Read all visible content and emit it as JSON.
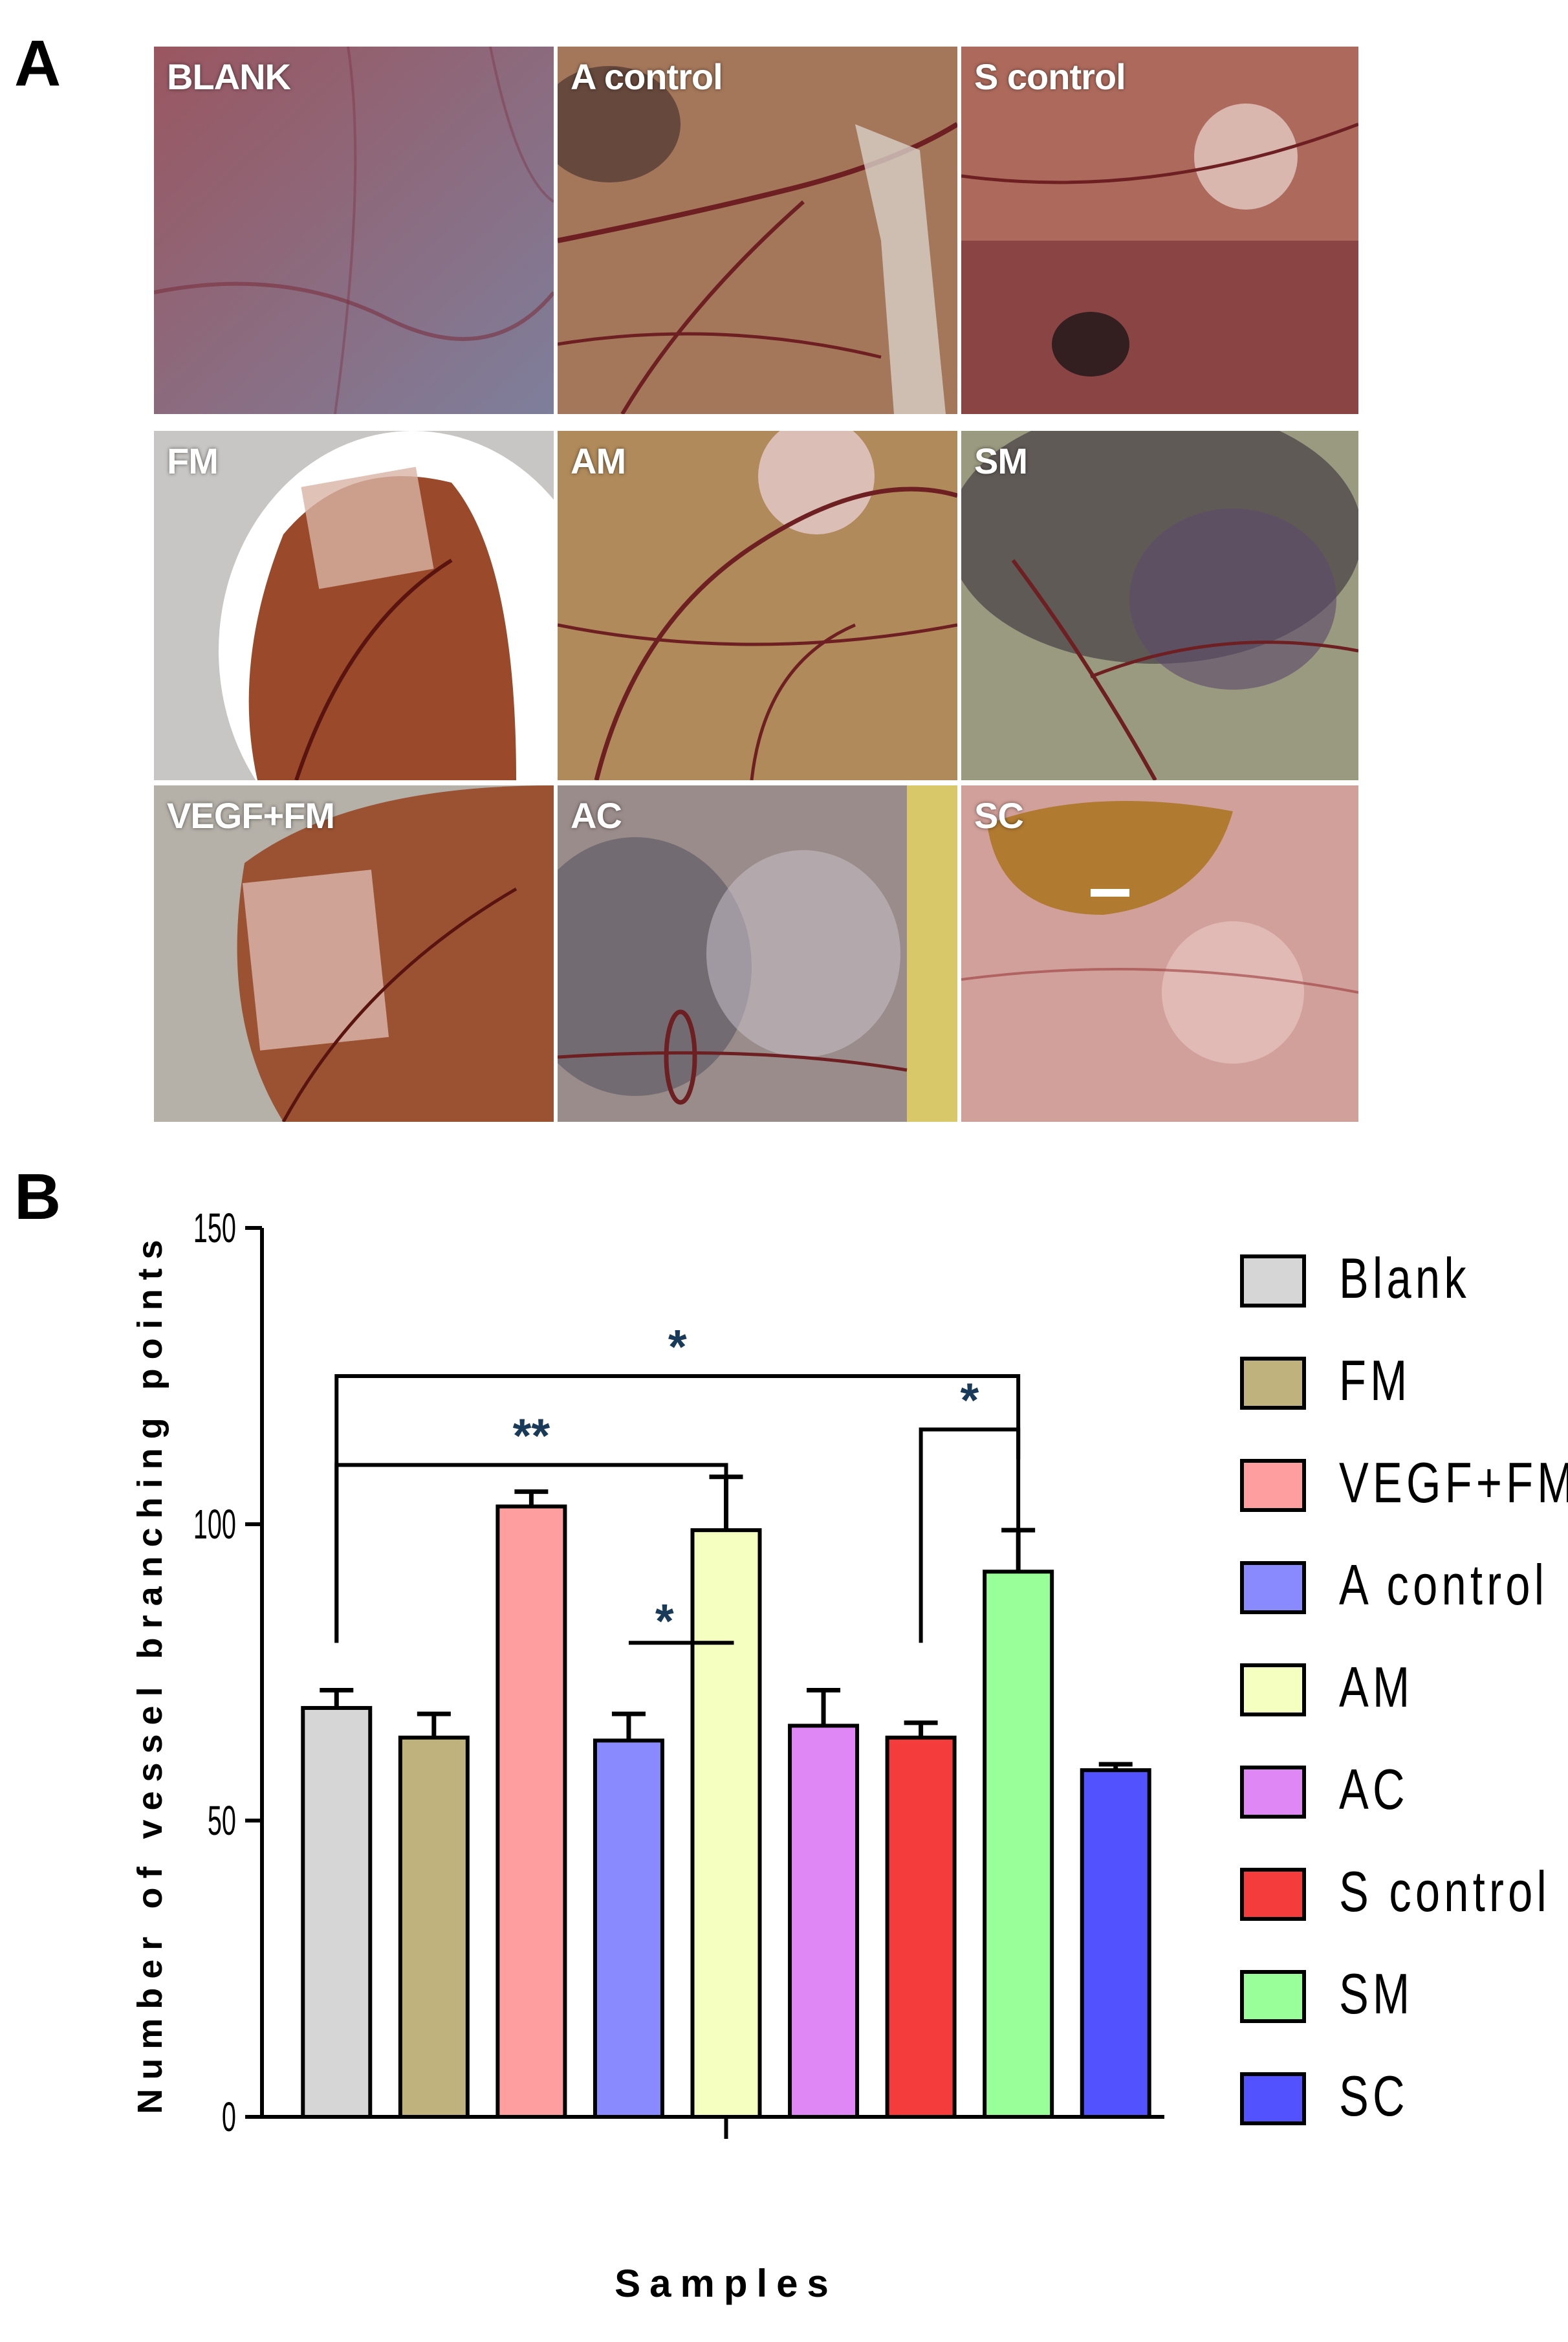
{
  "panel_a": {
    "letter": "A",
    "photos": [
      {
        "label": "BLANK"
      },
      {
        "label": "A control"
      },
      {
        "label": "S control"
      },
      {
        "label": "FM"
      },
      {
        "label": "AM"
      },
      {
        "label": "SM"
      },
      {
        "label": "VEGF+FM"
      },
      {
        "label": "AC"
      },
      {
        "label": "SC"
      }
    ]
  },
  "panel_b": {
    "letter": "B"
  },
  "chart_data": {
    "type": "bar",
    "title": "",
    "xlabel": "Samples",
    "ylabel": "Number of vessel branching points",
    "ylim": [
      0,
      150
    ],
    "yticks": [
      "0",
      "50",
      "100",
      "150"
    ],
    "categories": [
      "Blank",
      "FM",
      "VEGF+FM",
      "A control",
      "AM",
      "AC",
      "S control",
      "SM",
      "SC"
    ],
    "values": [
      69,
      64,
      103,
      63.5,
      99,
      66,
      64,
      92,
      58.5
    ],
    "errors": [
      3,
      4,
      2.5,
      4.5,
      9,
      6,
      2.5,
      7,
      1
    ],
    "colors": [
      "#d6d6d6",
      "#c0b27c",
      "#ff9e9e",
      "#8a8aff",
      "#f5ffbf",
      "#de87f5",
      "#f53c3c",
      "#99ff99",
      "#5252ff"
    ],
    "legend": {
      "position": "right",
      "entries": [
        "Blank",
        "FM",
        "VEGF+FM",
        "A control",
        "AM",
        "AC",
        "S control",
        "SM",
        "SC"
      ]
    },
    "significance": [
      {
        "label": "*",
        "between": [
          "Blank",
          "SM"
        ]
      },
      {
        "label": "**",
        "between": [
          "Blank",
          "AM"
        ]
      },
      {
        "label": "*",
        "between": [
          "S control",
          "SM"
        ]
      },
      {
        "label": "*",
        "between": [
          "A control",
          "AM"
        ]
      }
    ],
    "grid": false
  }
}
